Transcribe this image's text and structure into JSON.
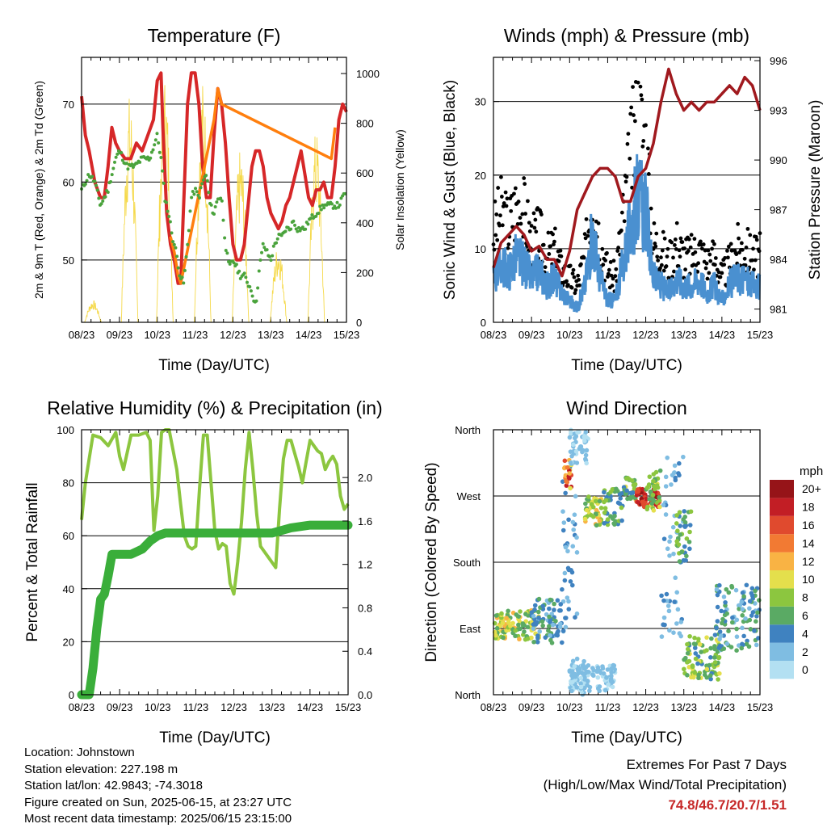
{
  "chart_data": [
    {
      "type": "line",
      "title": "Temperature (F)",
      "xlabel": "Time (Day/UTC)",
      "ylabel": "2m & 9m T (Red, Orange) & 2m Td (Green)",
      "ylabel_right": "Solar Insolation (Yellow)",
      "x_ticks": [
        "08/23",
        "09/23",
        "10/23",
        "11/23",
        "12/23",
        "13/23",
        "14/23",
        "15/23"
      ],
      "ylim": [
        42,
        76
      ],
      "y_ticks": [
        50,
        60,
        70
      ],
      "ylim_right": [
        0,
        1065
      ],
      "y_ticks_right": [
        0,
        200,
        400,
        600,
        800,
        1000
      ],
      "grid_y": [
        50,
        60,
        70
      ],
      "series": [
        {
          "color": "#d62728",
          "x": [
            0,
            0.1,
            0.2,
            0.35,
            0.5,
            0.6,
            0.7,
            0.8,
            0.9,
            1.0,
            1.15,
            1.3,
            1.45,
            1.6,
            1.75,
            1.9,
            2.0,
            2.1,
            2.15,
            2.25,
            2.35,
            2.45,
            2.55,
            2.62,
            2.68,
            2.72,
            2.8,
            2.9,
            3.0,
            3.1,
            3.2,
            3.3,
            3.4,
            3.5,
            3.6,
            3.7,
            3.8,
            3.9,
            4.0,
            4.1,
            4.2,
            4.3,
            4.4,
            4.5,
            4.6,
            4.7,
            4.8,
            4.9,
            5.0,
            5.1,
            5.2,
            5.3,
            5.4,
            5.5,
            5.6,
            5.7,
            5.8,
            5.9,
            6.0,
            6.1,
            6.2,
            6.3,
            6.4,
            6.5,
            6.6,
            6.7,
            6.8,
            6.9,
            7.0
          ],
          "values": [
            71,
            66,
            64,
            60,
            58,
            58,
            62,
            67,
            65,
            64,
            63,
            63,
            65,
            64,
            66,
            68,
            73,
            74,
            67,
            56,
            52,
            50,
            47,
            47,
            55,
            60,
            70,
            74,
            74,
            70,
            62,
            58,
            58,
            66,
            72,
            70,
            65,
            58,
            52,
            50,
            50,
            52,
            57,
            62,
            64,
            64,
            62,
            58,
            56,
            55,
            54,
            55,
            57,
            58,
            60,
            62,
            64,
            61,
            58,
            57,
            59,
            59,
            60,
            58,
            58,
            62,
            68,
            70,
            69
          ]
        },
        {
          "color": "#ff7f0e",
          "x": [
            2.35,
            2.45,
            2.55,
            2.62,
            3.5,
            3.6,
            3.7,
            6.6,
            6.7
          ],
          "values": [
            53,
            51,
            48,
            47,
            68,
            72,
            70,
            63,
            67
          ]
        },
        {
          "color": "#4aa33c",
          "x": [
            0,
            0.2,
            0.35,
            0.5,
            0.6,
            0.7,
            0.9,
            1.0,
            1.2,
            1.4,
            1.6,
            1.8,
            2.0,
            2.1,
            2.2,
            2.3,
            2.4,
            2.5,
            2.6,
            2.7,
            2.8,
            2.9,
            3.0,
            3.1,
            3.2,
            3.3,
            3.4,
            3.5,
            3.6,
            3.7,
            3.8,
            3.9,
            4.0,
            4.1,
            4.2,
            4.3,
            4.4,
            4.5,
            4.6,
            4.7,
            4.8,
            4.9,
            5.0,
            5.1,
            5.2,
            5.3,
            5.4,
            5.5,
            5.6,
            5.7,
            5.8,
            5.9,
            6.0,
            6.2,
            6.4,
            6.6,
            6.8,
            6.9,
            7.0
          ],
          "values": [
            59,
            61,
            60,
            57,
            58,
            59,
            63,
            64,
            62,
            62,
            63,
            63,
            66,
            63,
            58,
            56,
            53,
            51,
            48,
            47,
            52,
            58,
            59,
            58,
            60,
            61,
            57,
            56,
            58,
            58,
            52,
            49,
            50,
            49,
            48,
            48,
            47,
            46,
            44,
            49,
            52,
            51,
            50,
            52,
            53,
            53,
            54,
            54,
            55,
            54,
            54,
            54,
            55,
            56,
            57,
            57,
            57,
            58,
            59
          ]
        }
      ],
      "solar_peaks": [
        {
          "day": 0.3,
          "value": 90
        },
        {
          "day": 1.27,
          "value": 920
        },
        {
          "day": 2.2,
          "value": 1000
        },
        {
          "day": 3.2,
          "value": 980
        },
        {
          "day": 4.2,
          "value": 700
        },
        {
          "day": 5.2,
          "value": 320
        },
        {
          "day": 6.2,
          "value": 780
        }
      ]
    },
    {
      "type": "scatter",
      "title": "Winds (mph) & Pressure (mb)",
      "xlabel": "Time (Day/UTC)",
      "ylabel": "Sonic Wind & Gust (Blue, Black)",
      "ylabel_right": "Station Pressure (Maroon)",
      "x_ticks": [
        "08/23",
        "09/23",
        "10/23",
        "11/23",
        "12/23",
        "13/23",
        "14/23",
        "15/23"
      ],
      "ylim": [
        0,
        36
      ],
      "y_ticks": [
        0,
        10,
        20,
        30
      ],
      "ylim_right": [
        980.2,
        996.2
      ],
      "y_ticks_right": [
        981,
        984,
        987,
        990,
        993,
        996
      ],
      "grid_y": [
        10,
        20,
        30
      ],
      "wind_mean": {
        "color": "#4a90d0",
        "x": [
          0,
          0.2,
          0.4,
          0.6,
          0.8,
          1.0,
          1.2,
          1.4,
          1.6,
          1.8,
          2.0,
          2.2,
          2.4,
          2.6,
          2.8,
          3.0,
          3.2,
          3.4,
          3.6,
          3.8,
          4.0,
          4.2,
          4.4,
          4.6,
          4.8,
          5.0,
          5.2,
          5.4,
          5.6,
          5.8,
          6.0,
          6.2,
          6.4,
          6.6,
          6.8,
          7.0
        ],
        "values": [
          6,
          8,
          7,
          9,
          8,
          6,
          7,
          5,
          6,
          4,
          3,
          2,
          5,
          12,
          6,
          3,
          3,
          8,
          13,
          17,
          15,
          6,
          5,
          4,
          6,
          5,
          5,
          6,
          4,
          5,
          3,
          5,
          6,
          6,
          5,
          5
        ]
      },
      "gust": {
        "color": "#000000",
        "x": [
          0,
          0.2,
          0.4,
          0.6,
          0.8,
          1.0,
          1.2,
          1.4,
          1.6,
          1.8,
          2.0,
          2.2,
          2.4,
          2.6,
          2.8,
          3.0,
          3.2,
          3.4,
          3.6,
          3.8,
          4.0,
          4.2,
          4.4,
          4.6,
          4.8,
          5.0,
          5.2,
          5.4,
          5.6,
          5.8,
          6.0,
          6.2,
          6.4,
          6.6,
          6.8,
          7.0
        ],
        "values": [
          12,
          15,
          13,
          16,
          15,
          11,
          12,
          9,
          10,
          7,
          6,
          5,
          9,
          18,
          11,
          7,
          6,
          14,
          22,
          28,
          24,
          11,
          10,
          8,
          11,
          9,
          9,
          10,
          8,
          9,
          6,
          8,
          10,
          10,
          9,
          9
        ]
      },
      "pressure": {
        "color": "#a0191e",
        "x": [
          0,
          0.2,
          0.4,
          0.6,
          0.8,
          1.0,
          1.2,
          1.4,
          1.6,
          1.8,
          2.0,
          2.2,
          2.4,
          2.6,
          2.8,
          3.0,
          3.2,
          3.4,
          3.6,
          3.8,
          4.0,
          4.2,
          4.4,
          4.6,
          4.8,
          5.0,
          5.2,
          5.4,
          5.6,
          5.8,
          6.0,
          6.2,
          6.4,
          6.6,
          6.8,
          7.0
        ],
        "values": [
          983.5,
          985,
          985.5,
          986,
          985.5,
          984.5,
          984.8,
          984,
          984,
          983,
          984.5,
          987,
          988,
          989,
          989.5,
          989.5,
          989,
          987.5,
          987.5,
          989,
          989.5,
          991,
          993.5,
          995.5,
          994,
          993,
          993.5,
          993,
          993.5,
          993.5,
          994,
          994.5,
          994,
          995,
          994.5,
          993
        ]
      }
    },
    {
      "type": "line",
      "title": "Relative Humidity (%) & Precipitation (in)",
      "xlabel": "Time (Day/UTC)",
      "ylabel": "Percent & Total Rainfall",
      "x_ticks": [
        "08/23",
        "09/23",
        "10/23",
        "11/23",
        "12/23",
        "13/23",
        "14/23",
        "15/23"
      ],
      "ylim": [
        0,
        100
      ],
      "y_ticks": [
        0,
        20,
        40,
        60,
        80,
        100
      ],
      "ylim_right": [
        0,
        2.44
      ],
      "y_ticks_right": [
        "0.0",
        "0.4",
        "0.8",
        "1.2",
        "1.6",
        "2.0"
      ],
      "grid_y": [
        20,
        40,
        60,
        80
      ],
      "series": [
        {
          "color": "#8cc63f",
          "x": [
            0,
            0.1,
            0.3,
            0.5,
            0.7,
            0.9,
            1.0,
            1.1,
            1.3,
            1.5,
            1.7,
            1.8,
            1.9,
            2.0,
            2.1,
            2.2,
            2.3,
            2.5,
            2.6,
            2.7,
            2.8,
            2.9,
            3.0,
            3.1,
            3.2,
            3.3,
            3.4,
            3.5,
            3.6,
            3.7,
            3.8,
            3.9,
            4.0,
            4.1,
            4.2,
            4.3,
            4.4,
            4.5,
            4.6,
            4.7,
            4.8,
            4.9,
            5.0,
            5.1,
            5.2,
            5.3,
            5.4,
            5.5,
            5.6,
            5.7,
            5.8,
            5.9,
            6.0,
            6.1,
            6.2,
            6.3,
            6.4,
            6.5,
            6.6,
            6.7,
            6.8,
            6.9,
            7.0
          ],
          "values": [
            66,
            80,
            98,
            97,
            94,
            99,
            90,
            85,
            98,
            98,
            99,
            96,
            62,
            75,
            99,
            100,
            100,
            85,
            72,
            60,
            56,
            55,
            56,
            78,
            98,
            98,
            80,
            62,
            55,
            57,
            56,
            42,
            38,
            50,
            65,
            85,
            99,
            85,
            68,
            56,
            54,
            52,
            50,
            48,
            70,
            89,
            96,
            96,
            91,
            86,
            80,
            88,
            96,
            94,
            92,
            91,
            85,
            88,
            90,
            87,
            75,
            70,
            72
          ]
        },
        {
          "color": "#3aae3a",
          "x": [
            0,
            0.2,
            0.3,
            0.4,
            0.5,
            0.6,
            0.7,
            0.8,
            0.9,
            1.0,
            1.3,
            1.6,
            1.8,
            2.0,
            2.2,
            2.5,
            3.0,
            3.5,
            4.0,
            4.5,
            5.0,
            5.5,
            6.0,
            6.5,
            7.0
          ],
          "values": [
            0,
            0,
            10,
            25,
            36,
            38,
            45,
            53,
            53,
            53,
            53,
            55,
            58,
            60,
            61,
            61,
            61,
            61,
            61,
            61,
            61,
            63,
            64,
            64,
            64
          ]
        }
      ]
    },
    {
      "type": "scatter",
      "title": "Wind Direction",
      "xlabel": "Time (Day/UTC)",
      "ylabel": "Direction (Colored By Speed)",
      "x_ticks": [
        "08/23",
        "09/23",
        "10/23",
        "11/23",
        "12/23",
        "13/23",
        "14/23",
        "15/23"
      ],
      "y_ticks": [
        "North",
        "East",
        "South",
        "West",
        "North"
      ],
      "ylim": [
        0,
        360
      ],
      "grid_y": [
        90,
        180,
        270
      ],
      "colorbar_title": "mph",
      "colorbar_labels": [
        "0",
        "2",
        "4",
        "6",
        "8",
        "10",
        "12",
        "14",
        "16",
        "18",
        "20+"
      ],
      "colorbar_colors": [
        "#b3e0f2",
        "#7fbde2",
        "#3f82c0",
        "#5aaa64",
        "#8cc63f",
        "#e4df4c",
        "#f9b344",
        "#f27a33",
        "#e04a2e",
        "#c21e25",
        "#961418"
      ],
      "clusters": [
        {
          "x0": 0.0,
          "x1": 1.2,
          "dir": [
            75,
            115
          ],
          "speed": [
            5,
            12
          ]
        },
        {
          "x0": 1.0,
          "x1": 1.9,
          "dir": [
            70,
            130
          ],
          "speed": [
            2,
            6
          ]
        },
        {
          "x0": 1.8,
          "x1": 2.2,
          "dir": [
            100,
            310
          ],
          "speed": [
            1,
            5
          ]
        },
        {
          "x0": 1.85,
          "x1": 2.1,
          "dir": [
            280,
            320
          ],
          "speed": [
            10,
            18
          ]
        },
        {
          "x0": 2.0,
          "x1": 2.5,
          "dir": [
            310,
            360
          ],
          "speed": [
            0,
            3
          ]
        },
        {
          "x0": 2.0,
          "x1": 2.4,
          "dir": [
            0,
            50
          ],
          "speed": [
            0,
            3
          ]
        },
        {
          "x0": 2.4,
          "x1": 2.9,
          "dir": [
            230,
            270
          ],
          "speed": [
            6,
            12
          ]
        },
        {
          "x0": 2.9,
          "x1": 3.4,
          "dir": [
            230,
            280
          ],
          "speed": [
            3,
            8
          ]
        },
        {
          "x0": 3.4,
          "x1": 3.75,
          "dir": [
            265,
            295
          ],
          "speed": [
            4,
            10
          ]
        },
        {
          "x0": 3.75,
          "x1": 4.4,
          "dir": [
            255,
            280
          ],
          "speed": [
            15,
            20
          ]
        },
        {
          "x0": 4.0,
          "x1": 4.4,
          "dir": [
            250,
            310
          ],
          "speed": [
            5,
            10
          ]
        },
        {
          "x0": 4.4,
          "x1": 5.0,
          "dir": [
            60,
            330
          ],
          "speed": [
            1,
            4
          ]
        },
        {
          "x0": 4.8,
          "x1": 5.2,
          "dir": [
            180,
            250
          ],
          "speed": [
            4,
            8
          ]
        },
        {
          "x0": 5.0,
          "x1": 6.0,
          "dir": [
            20,
            80
          ],
          "speed": [
            4,
            10
          ]
        },
        {
          "x0": 5.8,
          "x1": 7.0,
          "dir": [
            60,
            150
          ],
          "speed": [
            2,
            7
          ]
        },
        {
          "x0": 2.0,
          "x1": 3.2,
          "dir": [
            5,
            40
          ],
          "speed": [
            0,
            3
          ]
        }
      ]
    }
  ],
  "footer": {
    "location": "Location: Johnstown",
    "elevation": "Station elevation: 227.198 m",
    "latlon": "Station lat/lon: 42.9843; -74.3018",
    "created": "Figure created on Sun, 2025-06-15, at 23:27 UTC",
    "recent": "Most recent data timestamp: 2025/06/15 23:15:00",
    "extremes_title": "Extremes For Past 7 Days",
    "extremes_sub": "(High/Low/Max Wind/Total Precipitation)",
    "extremes_values": "74.8/46.7/20.7/1.51"
  }
}
